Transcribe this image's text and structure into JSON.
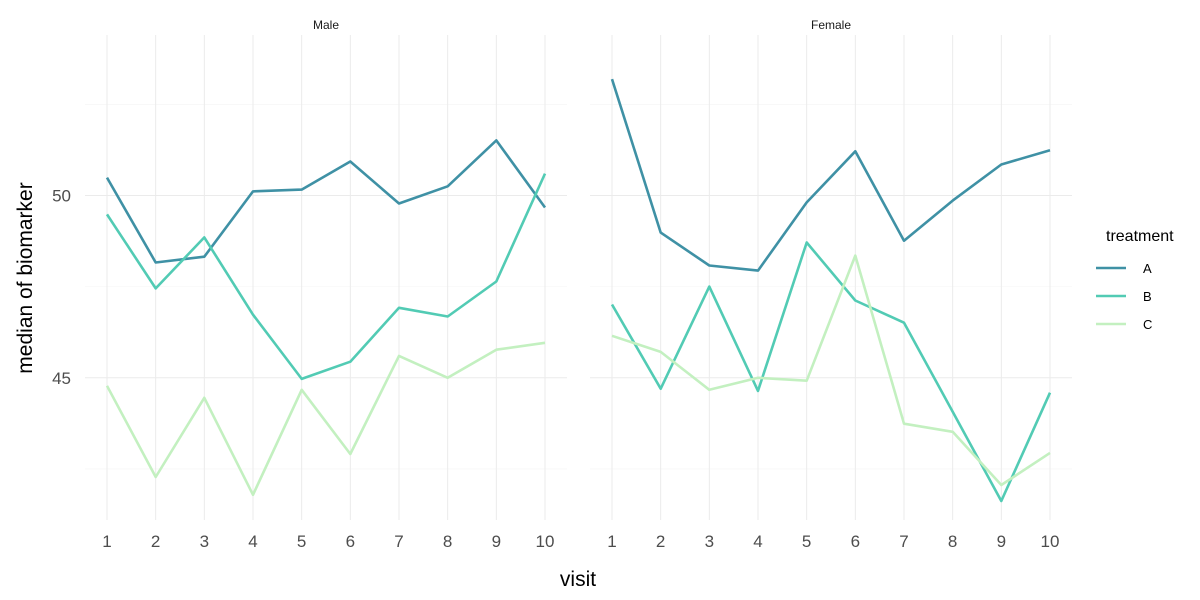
{
  "chart_data": {
    "type": "line",
    "xlabel": "visit",
    "ylabel": "median of biomarker",
    "ylim": [
      41.1,
      54.4
    ],
    "yticks": [
      45,
      50
    ],
    "xticks": [
      1,
      2,
      3,
      4,
      5,
      6,
      7,
      8,
      9,
      10
    ],
    "grid": true,
    "legend": {
      "title": "treatment",
      "position": "right"
    },
    "colors": {
      "A": "#3f91a5",
      "B": "#52cbb4",
      "C": "#c3f0c0"
    },
    "panels": [
      {
        "label": "Male",
        "series": [
          {
            "name": "A",
            "x": [
              1,
              2,
              3,
              4,
              5,
              6,
              7,
              8,
              9,
              10
            ],
            "y": [
              50.49,
              48.16,
              48.32,
              50.11,
              50.16,
              50.93,
              49.78,
              50.25,
              51.51,
              49.67
            ]
          },
          {
            "name": "B",
            "x": [
              1,
              2,
              3,
              4,
              5,
              6,
              7,
              8,
              9,
              10
            ],
            "y": [
              49.48,
              47.45,
              48.85,
              46.73,
              44.97,
              45.44,
              46.92,
              46.68,
              47.64,
              50.6
            ]
          },
          {
            "name": "C",
            "x": [
              1,
              2,
              3,
              4,
              5,
              6,
              7,
              8,
              9,
              10
            ],
            "y": [
              44.78,
              42.28,
              44.45,
              41.79,
              44.67,
              42.91,
              45.6,
              45.0,
              45.77,
              45.96
            ]
          }
        ]
      },
      {
        "label": "Female",
        "series": [
          {
            "name": "A",
            "x": [
              1,
              2,
              3,
              4,
              5,
              6,
              7,
              8,
              9,
              10
            ],
            "y": [
              53.19,
              48.98,
              48.08,
              47.94,
              49.81,
              51.21,
              48.76,
              49.86,
              50.85,
              51.24
            ]
          },
          {
            "name": "B",
            "x": [
              1,
              2,
              3,
              4,
              5,
              6,
              7,
              8,
              9,
              10
            ],
            "y": [
              47.01,
              44.7,
              47.5,
              44.64,
              48.71,
              47.12,
              46.51,
              44.07,
              41.62,
              44.59
            ]
          },
          {
            "name": "C",
            "x": [
              1,
              2,
              3,
              4,
              5,
              6,
              7,
              8,
              9,
              10
            ],
            "y": [
              46.15,
              45.71,
              44.67,
              45.0,
              44.92,
              48.35,
              43.74,
              43.52,
              42.06,
              42.94
            ]
          }
        ]
      }
    ]
  }
}
